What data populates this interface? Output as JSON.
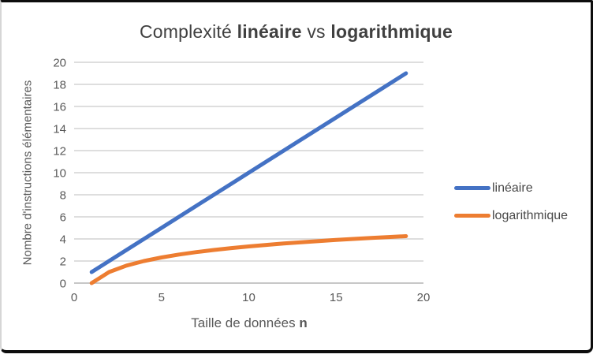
{
  "frame": {
    "background": "#ffffff",
    "border_color": "#0d0d0d",
    "left_edge_color": "#d6d6d6"
  },
  "title": {
    "part1": "Complexité ",
    "part2": "linéaire",
    "part3": " vs ",
    "part4": "logarithmique",
    "color": "#404040"
  },
  "chart_data": {
    "type": "line",
    "title": "Complexité linéaire vs logarithmique",
    "xlabel": "Taille de données n",
    "xlabel_text": "Taille de données ",
    "xlabel_bold": "n",
    "ylabel": "Nombre d'instructions élémentaires",
    "x": [
      1,
      2,
      3,
      4,
      5,
      6,
      7,
      8,
      9,
      10,
      11,
      12,
      13,
      14,
      15,
      16,
      17,
      18,
      19
    ],
    "series": [
      {
        "name": "linéaire",
        "color": "#4472C4",
        "values": [
          1,
          2,
          3,
          4,
          5,
          6,
          7,
          8,
          9,
          10,
          11,
          12,
          13,
          14,
          15,
          16,
          17,
          18,
          19
        ]
      },
      {
        "name": "logarithmique",
        "color": "#ED7D31",
        "values": [
          0,
          1,
          1.585,
          2,
          2.322,
          2.585,
          2.807,
          3,
          3.17,
          3.322,
          3.459,
          3.585,
          3.7,
          3.807,
          3.907,
          4,
          4.087,
          4.17,
          4.248
        ]
      }
    ],
    "xlim": [
      0,
      20
    ],
    "ylim": [
      0,
      20
    ],
    "x_ticks": [
      0,
      5,
      10,
      15,
      20
    ],
    "y_ticks": [
      0,
      2,
      4,
      6,
      8,
      10,
      12,
      14,
      16,
      18,
      20
    ],
    "grid": "horizontal-only",
    "gridline_color": "#D9D9D9",
    "axis_line_color": "#BFBFBF",
    "tick_label_color": "#595959",
    "line_width": 5,
    "legend_position": "right"
  },
  "legend": {
    "items": [
      {
        "label": "linéaire",
        "color": "#4472C4"
      },
      {
        "label": "logarithmique",
        "color": "#ED7D31"
      }
    ]
  }
}
